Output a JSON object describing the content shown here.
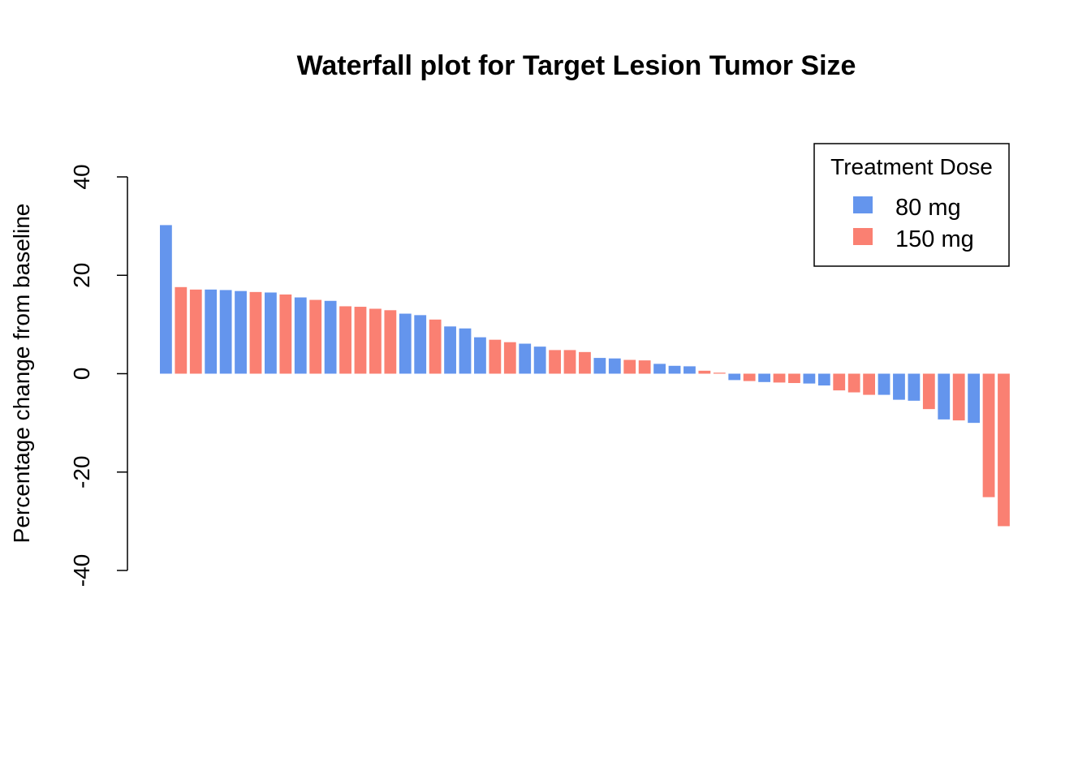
{
  "chart_data": {
    "type": "bar",
    "title": "Waterfall plot for Target Lesion Tumor Size",
    "xlabel": "",
    "ylabel": "Percentage change from baseline",
    "ylim": [
      -40,
      40
    ],
    "yticks": [
      40,
      20,
      0,
      -20,
      -40
    ],
    "ytick_labels": [
      "40",
      "20",
      "0",
      "-20",
      "-40"
    ],
    "grid": false,
    "legend": {
      "title": "Treatment Dose",
      "placement": "top-right",
      "entries": [
        {
          "label": "80 mg",
          "color": "#6495ED"
        },
        {
          "label": "150 mg",
          "color": "#FA8072"
        }
      ]
    },
    "colors": {
      "80 mg": "#6495ED",
      "150 mg": "#FA8072"
    },
    "bars": [
      {
        "value": 30.2,
        "group": "80 mg"
      },
      {
        "value": 17.6,
        "group": "150 mg"
      },
      {
        "value": 17.1,
        "group": "150 mg"
      },
      {
        "value": 17.1,
        "group": "80 mg"
      },
      {
        "value": 17.0,
        "group": "80 mg"
      },
      {
        "value": 16.8,
        "group": "80 mg"
      },
      {
        "value": 16.6,
        "group": "150 mg"
      },
      {
        "value": 16.5,
        "group": "80 mg"
      },
      {
        "value": 16.1,
        "group": "150 mg"
      },
      {
        "value": 15.5,
        "group": "80 mg"
      },
      {
        "value": 15.0,
        "group": "150 mg"
      },
      {
        "value": 14.8,
        "group": "80 mg"
      },
      {
        "value": 13.7,
        "group": "150 mg"
      },
      {
        "value": 13.6,
        "group": "150 mg"
      },
      {
        "value": 13.2,
        "group": "150 mg"
      },
      {
        "value": 12.9,
        "group": "150 mg"
      },
      {
        "value": 12.2,
        "group": "80 mg"
      },
      {
        "value": 11.9,
        "group": "80 mg"
      },
      {
        "value": 11.0,
        "group": "150 mg"
      },
      {
        "value": 9.6,
        "group": "80 mg"
      },
      {
        "value": 9.2,
        "group": "80 mg"
      },
      {
        "value": 7.4,
        "group": "80 mg"
      },
      {
        "value": 6.9,
        "group": "150 mg"
      },
      {
        "value": 6.4,
        "group": "150 mg"
      },
      {
        "value": 6.1,
        "group": "80 mg"
      },
      {
        "value": 5.5,
        "group": "80 mg"
      },
      {
        "value": 4.8,
        "group": "150 mg"
      },
      {
        "value": 4.8,
        "group": "150 mg"
      },
      {
        "value": 4.4,
        "group": "150 mg"
      },
      {
        "value": 3.2,
        "group": "80 mg"
      },
      {
        "value": 3.1,
        "group": "80 mg"
      },
      {
        "value": 2.8,
        "group": "150 mg"
      },
      {
        "value": 2.7,
        "group": "150 mg"
      },
      {
        "value": 2.0,
        "group": "80 mg"
      },
      {
        "value": 1.6,
        "group": "80 mg"
      },
      {
        "value": 1.5,
        "group": "80 mg"
      },
      {
        "value": 0.6,
        "group": "150 mg"
      },
      {
        "value": 0.2,
        "group": "150 mg"
      },
      {
        "value": -1.3,
        "group": "80 mg"
      },
      {
        "value": -1.5,
        "group": "150 mg"
      },
      {
        "value": -1.7,
        "group": "80 mg"
      },
      {
        "value": -1.8,
        "group": "150 mg"
      },
      {
        "value": -1.9,
        "group": "150 mg"
      },
      {
        "value": -2.0,
        "group": "80 mg"
      },
      {
        "value": -2.4,
        "group": "80 mg"
      },
      {
        "value": -3.4,
        "group": "150 mg"
      },
      {
        "value": -3.8,
        "group": "150 mg"
      },
      {
        "value": -4.3,
        "group": "150 mg"
      },
      {
        "value": -4.3,
        "group": "80 mg"
      },
      {
        "value": -5.3,
        "group": "80 mg"
      },
      {
        "value": -5.5,
        "group": "80 mg"
      },
      {
        "value": -7.2,
        "group": "150 mg"
      },
      {
        "value": -9.3,
        "group": "80 mg"
      },
      {
        "value": -9.5,
        "group": "150 mg"
      },
      {
        "value": -10.0,
        "group": "80 mg"
      },
      {
        "value": -25.1,
        "group": "150 mg"
      },
      {
        "value": -31.0,
        "group": "150 mg"
      }
    ]
  }
}
